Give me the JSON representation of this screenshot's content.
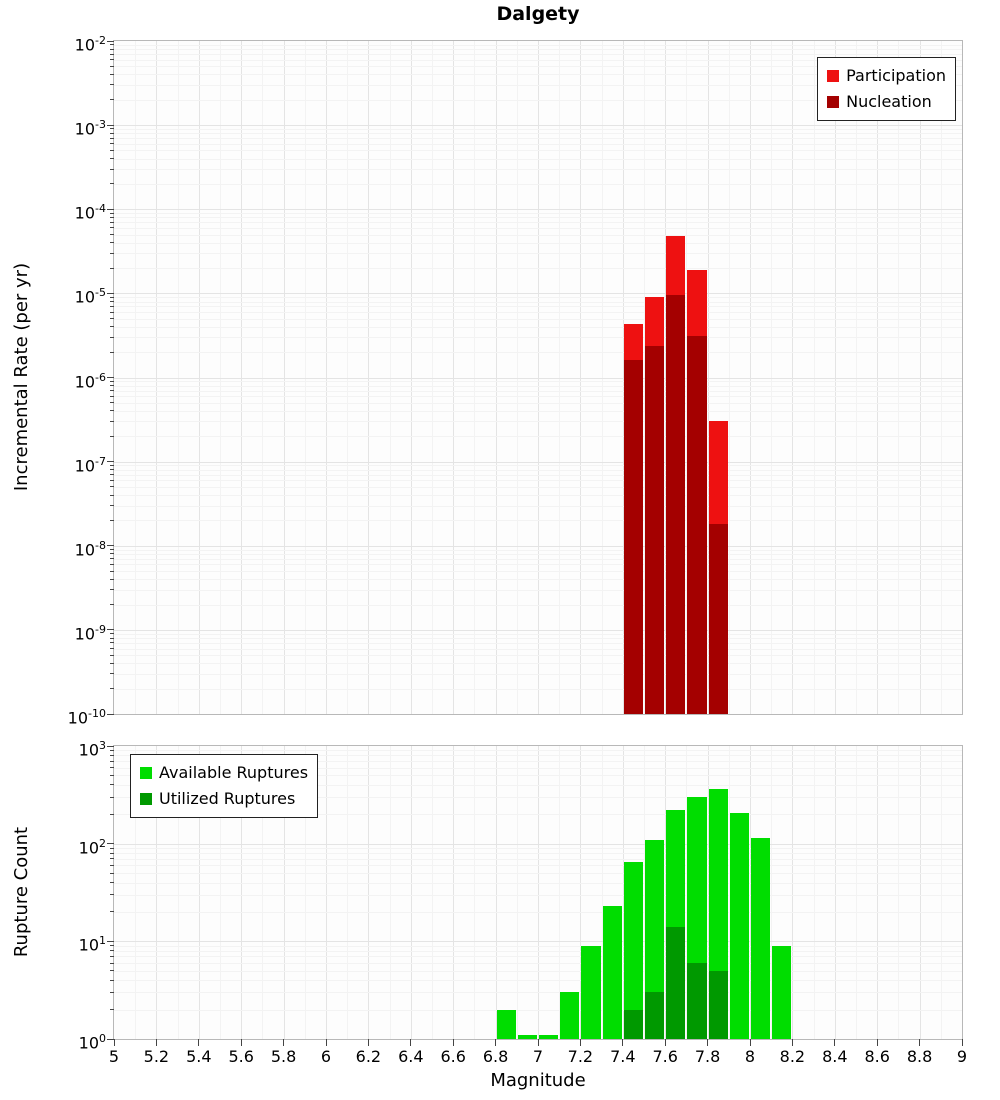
{
  "title": "Dalgety",
  "chart_data": [
    {
      "type": "bar",
      "title": "Dalgety",
      "ylabel": "Incremental Rate (per yr)",
      "yscale": "log",
      "xlim": [
        5,
        9
      ],
      "ylim": [
        1e-10,
        0.01
      ],
      "bin_width": 0.1,
      "grid": true,
      "legend_position": "top-right",
      "y_tick_exponents": [
        -2,
        -3,
        -4,
        -5,
        -6,
        -7,
        -8,
        -9,
        -10
      ],
      "series": [
        {
          "name": "Participation",
          "color": "#ee1111",
          "x": [
            7.45,
            7.55,
            7.65,
            7.75,
            7.85
          ],
          "values": [
            4.3e-06,
            9e-06,
            4.8e-05,
            1.9e-05,
            3e-07
          ]
        },
        {
          "name": "Nucleation",
          "color": "#a40000",
          "x": [
            7.45,
            7.55,
            7.65,
            7.75,
            7.85
          ],
          "values": [
            1.6e-06,
            2.4e-06,
            9.5e-06,
            3.1e-06,
            1.8e-08
          ]
        }
      ]
    },
    {
      "type": "bar",
      "xlabel": "Magnitude",
      "ylabel": "Rupture Count",
      "yscale": "log",
      "xlim": [
        5,
        9
      ],
      "ylim": [
        1,
        1000
      ],
      "bin_width": 0.1,
      "grid": true,
      "legend_position": "top-left",
      "y_tick_exponents": [
        3,
        2,
        1,
        0
      ],
      "x_tick_labels": [
        "5",
        "5.2",
        "5.4",
        "5.6",
        "5.8",
        "6",
        "6.2",
        "6.4",
        "6.6",
        "6.8",
        "7",
        "7.2",
        "7.4",
        "7.6",
        "7.8",
        "8",
        "8.2",
        "8.4",
        "8.6",
        "8.8",
        "9"
      ],
      "series": [
        {
          "name": "Available Ruptures",
          "color": "#00dd00",
          "x": [
            6.85,
            6.95,
            7.05,
            7.15,
            7.25,
            7.35,
            7.45,
            7.55,
            7.65,
            7.75,
            7.85,
            7.95,
            8.05,
            8.15
          ],
          "values": [
            2,
            1,
            1,
            3,
            9,
            23,
            65,
            110,
            220,
            300,
            360,
            205,
            115,
            9
          ]
        },
        {
          "name": "Utilized Ruptures",
          "color": "#009900",
          "x": [
            7.45,
            7.55,
            7.65,
            7.75,
            7.85
          ],
          "values": [
            2,
            3,
            14,
            6,
            5
          ]
        }
      ]
    }
  ]
}
